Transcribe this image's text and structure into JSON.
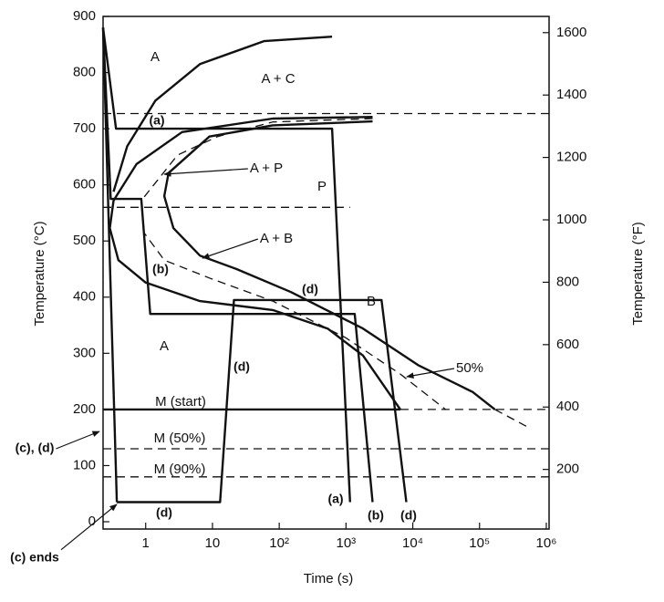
{
  "chart_data": {
    "type": "line",
    "xlabel": "Time (s)",
    "ylabel": "Temperature (°C)",
    "y2label": "Temperature (°F)",
    "xscale": "log",
    "xlim": [
      0.23,
      1100000
    ],
    "xticks": [
      1,
      10,
      {
        "value": 100,
        "label": "10²"
      },
      {
        "value": 1000,
        "label": "10³"
      },
      {
        "value": 10000,
        "label": "10⁴"
      },
      {
        "value": 100000,
        "label": "10⁵"
      },
      {
        "value": 1000000,
        "label": "10⁶"
      }
    ],
    "ylim": [
      -13,
      900
    ],
    "yticks": [
      0,
      100,
      200,
      300,
      400,
      500,
      600,
      700,
      800,
      900
    ],
    "y2lim": [
      9,
      1652
    ],
    "y2ticks": [
      200,
      400,
      600,
      800,
      1000,
      1200,
      1400,
      1600
    ],
    "series": [
      {
        "color": "#111",
        "dash": false,
        "x": [
          0.33,
          0.53,
          1.4,
          6.5,
          59,
          620
        ],
        "values": [
          588,
          669,
          750,
          815,
          856,
          864
        ]
      },
      {
        "color": "#111",
        "dash": false,
        "x": [
          2500,
          80,
          3.5,
          0.73,
          0.33,
          0.29,
          0.39,
          1,
          6.5,
          80,
          530,
          1800,
          6500
        ],
        "values": [
          721,
          718,
          694,
          637,
          572,
          523,
          466,
          426,
          393,
          377,
          344,
          296,
          200
        ]
      },
      {
        "color": "#111",
        "dash": true,
        "x": [
          2500,
          80,
          12,
          3.0,
          0.86,
          0.94,
          1.9,
          9,
          80,
          980,
          6500,
          31000
        ],
        "values": [
          718,
          712,
          686,
          653,
          572,
          515,
          466,
          434,
          393,
          328,
          263,
          200
        ]
      },
      {
        "color": "#111",
        "dash": false,
        "x": [
          2500,
          80,
          9,
          2.2,
          1.9,
          2.6,
          6.5,
          23,
          150,
          1800,
          12000,
          79000,
          170000
        ],
        "values": [
          713,
          706,
          686,
          621,
          580,
          523,
          474,
          450,
          409,
          344,
          279,
          231,
          200
        ]
      },
      {
        "color": "#111",
        "dash": true,
        "x": [
          170000,
          520000
        ],
        "values": [
          200,
          169
        ]
      },
      {
        "color": "#111",
        "dash": true,
        "x": [
          0.23,
          1100000
        ],
        "values": [
          727,
          727
        ]
      },
      {
        "color": "#111",
        "dash": true,
        "x": [
          0.23,
          1150
        ],
        "values": [
          560,
          560
        ]
      },
      {
        "color": "#111",
        "dash": false,
        "x": [
          0.23,
          6500
        ],
        "values": [
          200,
          200
        ]
      },
      {
        "color": "#111",
        "dash": true,
        "x": [
          6500,
          1100000
        ],
        "values": [
          200,
          200
        ]
      },
      {
        "color": "#111",
        "dash": true,
        "x": [
          0.23,
          1100000
        ],
        "values": [
          130,
          130
        ]
      },
      {
        "color": "#111",
        "dash": true,
        "x": [
          0.23,
          1100000
        ],
        "values": [
          80,
          80
        ]
      },
      {
        "color": "#111",
        "dash": false,
        "x": [
          0.23,
          0.36,
          620,
          1150
        ],
        "values": [
          880,
          700,
          700,
          35
        ]
      },
      {
        "color": "#111",
        "dash": false,
        "x": [
          0.23,
          0.3,
          0.86,
          1.17,
          1350,
          2500
        ],
        "values": [
          880,
          575,
          575,
          370,
          370,
          35
        ]
      },
      {
        "color": "#111",
        "dash": false,
        "x": [
          0.23,
          0.37
        ],
        "values": [
          880,
          35
        ]
      },
      {
        "color": "#111",
        "dash": false,
        "x": [
          0.37,
          13,
          21,
          3400,
          8000
        ],
        "values": [
          35,
          35,
          395,
          395,
          35
        ]
      }
    ],
    "annotations": [
      "A",
      "A + C",
      "(a)",
      "A + P",
      "P",
      "A + B",
      "(b)",
      "(d)",
      "B",
      "A",
      "(d)",
      "50%",
      "M (start)",
      "M (50%)",
      "M (90%)",
      "(d)",
      "(a)",
      "(b)",
      "(d)",
      "(c), (d)",
      "(c) ends"
    ]
  }
}
